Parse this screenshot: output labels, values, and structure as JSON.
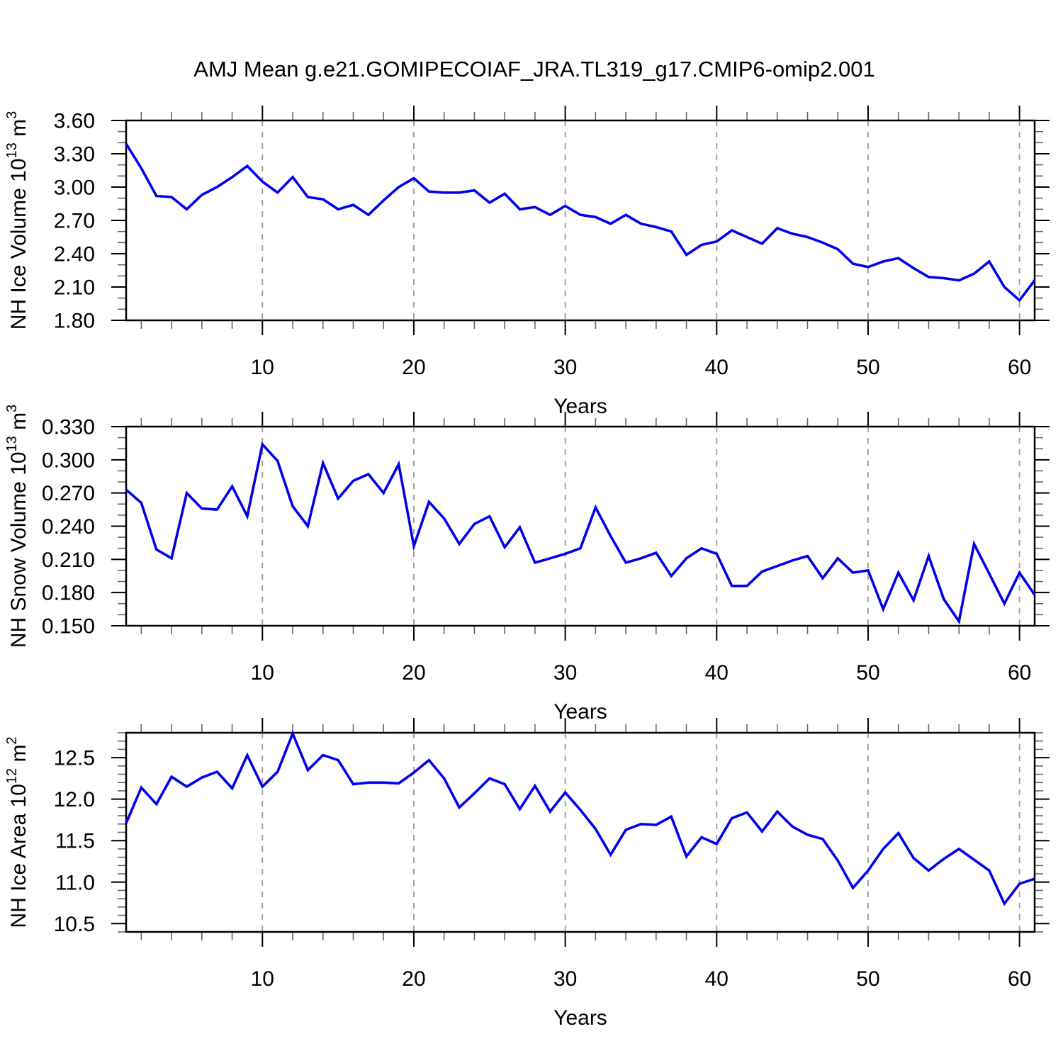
{
  "title": "AMJ Mean g.e21.GOMIPECOIAF_JRA.TL319_g17.CMIP6-omip2.001",
  "background_color": "#FFFFFF",
  "line_color": "#0000EE",
  "grid_color": "#999999",
  "frame_color": "#000000",
  "minor_tick_color": "#666666",
  "text_color": "#000000",
  "chart_data": [
    {
      "type": "line",
      "ylabel": "NH Ice Volume 10^13 m^3",
      "ylabel_parts": [
        {
          "t": "NH Ice Volume 10",
          "sup": false
        },
        {
          "t": "13",
          "sup": true
        },
        {
          "t": " m",
          "sup": false
        },
        {
          "t": "3",
          "sup": true
        }
      ],
      "xlabel": "Years",
      "xlim": [
        1,
        61
      ],
      "ylim": [
        1.8,
        3.6
      ],
      "x_start": 1,
      "yticks": {
        "values": [
          1.8,
          2.1,
          2.4,
          2.7,
          3.0,
          3.3,
          3.6
        ],
        "labels": [
          "1.80",
          "2.10",
          "2.40",
          "2.70",
          "3.00",
          "3.30",
          "3.60"
        ],
        "minor_step": 0.1
      },
      "xticks": {
        "values": [
          10,
          20,
          30,
          40,
          50,
          60
        ],
        "labels": [
          "10",
          "20",
          "30",
          "40",
          "50",
          "60"
        ],
        "minor_step": 2
      },
      "grid": "vertical-dashed",
      "legend": "none",
      "values": [
        3.39,
        3.17,
        2.92,
        2.91,
        2.8,
        2.93,
        3.0,
        3.09,
        3.19,
        3.05,
        2.95,
        3.09,
        2.91,
        2.89,
        2.8,
        2.84,
        2.75,
        2.88,
        3.0,
        3.08,
        2.96,
        2.95,
        2.95,
        2.97,
        2.86,
        2.94,
        2.8,
        2.82,
        2.75,
        2.83,
        2.75,
        2.73,
        2.67,
        2.75,
        2.67,
        2.64,
        2.6,
        2.39,
        2.48,
        2.51,
        2.61,
        2.55,
        2.49,
        2.63,
        2.58,
        2.55,
        2.5,
        2.44,
        2.31,
        2.28,
        2.33,
        2.36,
        2.27,
        2.19,
        2.18,
        2.16,
        2.22,
        2.33,
        2.1,
        1.98,
        2.16
      ]
    },
    {
      "type": "line",
      "ylabel": "NH Snow Volume 10^13 m^3",
      "ylabel_parts": [
        {
          "t": "NH Snow Volume 10",
          "sup": false
        },
        {
          "t": "13",
          "sup": true
        },
        {
          "t": " m",
          "sup": false
        },
        {
          "t": "3",
          "sup": true
        }
      ],
      "xlabel": "Years",
      "xlim": [
        1,
        61
      ],
      "ylim": [
        0.15,
        0.33
      ],
      "x_start": 1,
      "yticks": {
        "values": [
          0.15,
          0.18,
          0.21,
          0.24,
          0.27,
          0.3,
          0.33
        ],
        "labels": [
          "0.150",
          "0.180",
          "0.210",
          "0.240",
          "0.270",
          "0.300",
          "0.330"
        ],
        "minor_step": 0.01
      },
      "xticks": {
        "values": [
          10,
          20,
          30,
          40,
          50,
          60
        ],
        "labels": [
          "10",
          "20",
          "30",
          "40",
          "50",
          "60"
        ],
        "minor_step": 2
      },
      "grid": "vertical-dashed",
      "legend": "none",
      "values": [
        0.273,
        0.261,
        0.219,
        0.211,
        0.27,
        0.256,
        0.255,
        0.276,
        0.249,
        0.314,
        0.299,
        0.258,
        0.24,
        0.297,
        0.265,
        0.281,
        0.287,
        0.27,
        0.296,
        0.222,
        0.262,
        0.247,
        0.224,
        0.242,
        0.249,
        0.221,
        0.239,
        0.207,
        0.211,
        0.215,
        0.22,
        0.257,
        0.231,
        0.207,
        0.211,
        0.216,
        0.195,
        0.211,
        0.22,
        0.215,
        0.186,
        0.186,
        0.199,
        0.204,
        0.209,
        0.213,
        0.193,
        0.211,
        0.198,
        0.2,
        0.165,
        0.198,
        0.173,
        0.213,
        0.174,
        0.154,
        0.224,
        0.197,
        0.17,
        0.198,
        0.178
      ]
    },
    {
      "type": "line",
      "ylabel": "NH Ice Area 10^12 m^2",
      "ylabel_parts": [
        {
          "t": "NH Ice Area 10",
          "sup": false
        },
        {
          "t": "12",
          "sup": true
        },
        {
          "t": " m",
          "sup": false
        },
        {
          "t": "2",
          "sup": true
        }
      ],
      "xlabel": "Years",
      "xlim": [
        1,
        61
      ],
      "ylim": [
        10.4,
        12.8
      ],
      "x_start": 1,
      "yticks": {
        "values": [
          10.5,
          11.0,
          11.5,
          12.0,
          12.5
        ],
        "labels": [
          "10.5",
          "11.0",
          "11.5",
          "12.0",
          "12.5"
        ],
        "minor_step": 0.1
      },
      "xticks": {
        "values": [
          10,
          20,
          30,
          40,
          50,
          60
        ],
        "labels": [
          "10",
          "20",
          "30",
          "40",
          "50",
          "60"
        ],
        "minor_step": 2
      },
      "grid": "vertical-dashed",
      "legend": "none",
      "values": [
        11.71,
        12.14,
        11.94,
        12.27,
        12.15,
        12.26,
        12.33,
        12.13,
        12.53,
        12.15,
        12.33,
        12.79,
        12.35,
        12.53,
        12.47,
        12.18,
        12.2,
        12.2,
        12.19,
        12.32,
        12.47,
        12.25,
        11.9,
        12.07,
        12.25,
        12.18,
        11.88,
        12.16,
        11.85,
        12.08,
        11.87,
        11.64,
        11.33,
        11.63,
        11.7,
        11.69,
        11.79,
        11.31,
        11.54,
        11.46,
        11.77,
        11.84,
        11.61,
        11.85,
        11.67,
        11.57,
        11.52,
        11.26,
        10.93,
        11.14,
        11.4,
        11.59,
        11.29,
        11.14,
        11.28,
        11.4,
        11.27,
        11.14,
        10.74,
        10.98,
        11.04
      ]
    }
  ]
}
